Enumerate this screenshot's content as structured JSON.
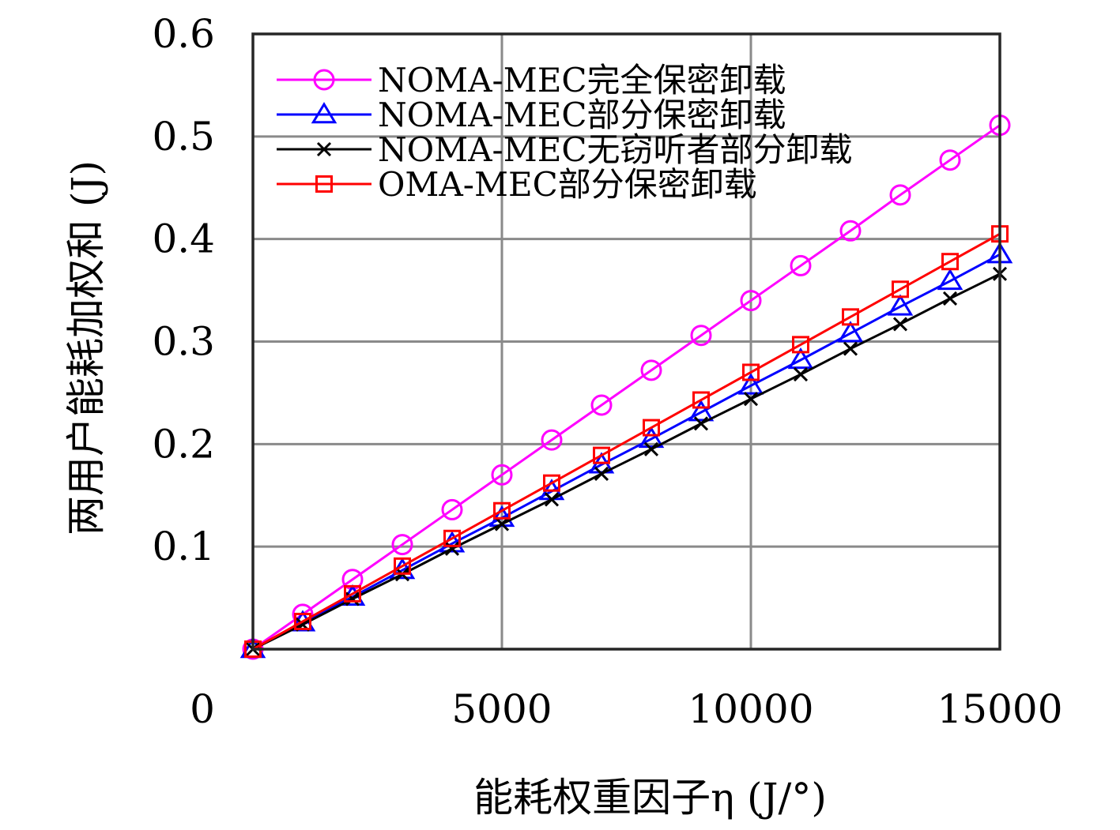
{
  "chart_data": {
    "type": "line",
    "title": "",
    "xlabel": "能耗权重因子η (J/°)",
    "ylabel": "两用户能耗加权和 (J)",
    "xlim": [
      0,
      15000
    ],
    "ylim": [
      0,
      0.6
    ],
    "x_ticks": [
      0,
      5000,
      10000,
      15000
    ],
    "x_tick_labels": [
      "0",
      "5000",
      "10000",
      "15000"
    ],
    "y_ticks": [
      0.1,
      0.2,
      0.3,
      0.4,
      0.5,
      0.6
    ],
    "y_tick_labels": [
      "0.1",
      "0.2",
      "0.3",
      "0.4",
      "0.5",
      "0.6"
    ],
    "grid": true,
    "legend_position": "top-left",
    "x": [
      0,
      1000,
      2000,
      3000,
      4000,
      5000,
      6000,
      7000,
      8000,
      9000,
      10000,
      11000,
      12000,
      13000,
      14000,
      15000
    ],
    "series": [
      {
        "name": "NOMA-MEC完全保密卸载",
        "color": "#ff00ff",
        "marker": "circle",
        "values": [
          0,
          0.034,
          0.068,
          0.102,
          0.136,
          0.17,
          0.204,
          0.238,
          0.272,
          0.306,
          0.34,
          0.374,
          0.408,
          0.443,
          0.477,
          0.511
        ]
      },
      {
        "name": "NOMA-MEC部分保密卸载",
        "color": "#0000ff",
        "marker": "triangle",
        "values": [
          0,
          0.026,
          0.051,
          0.077,
          0.103,
          0.128,
          0.154,
          0.18,
          0.205,
          0.231,
          0.257,
          0.282,
          0.308,
          0.334,
          0.359,
          0.385
        ]
      },
      {
        "name": "NOMA-MEC无窃听者部分卸载",
        "color": "#000000",
        "marker": "x",
        "values": [
          0,
          0.024,
          0.049,
          0.073,
          0.098,
          0.122,
          0.146,
          0.171,
          0.195,
          0.22,
          0.244,
          0.268,
          0.293,
          0.317,
          0.342,
          0.366
        ]
      },
      {
        "name": "OMA-MEC部分保密卸载",
        "color": "#ff0000",
        "marker": "square",
        "values": [
          0,
          0.027,
          0.054,
          0.081,
          0.108,
          0.135,
          0.162,
          0.189,
          0.216,
          0.243,
          0.27,
          0.297,
          0.324,
          0.351,
          0.378,
          0.405
        ]
      }
    ]
  }
}
